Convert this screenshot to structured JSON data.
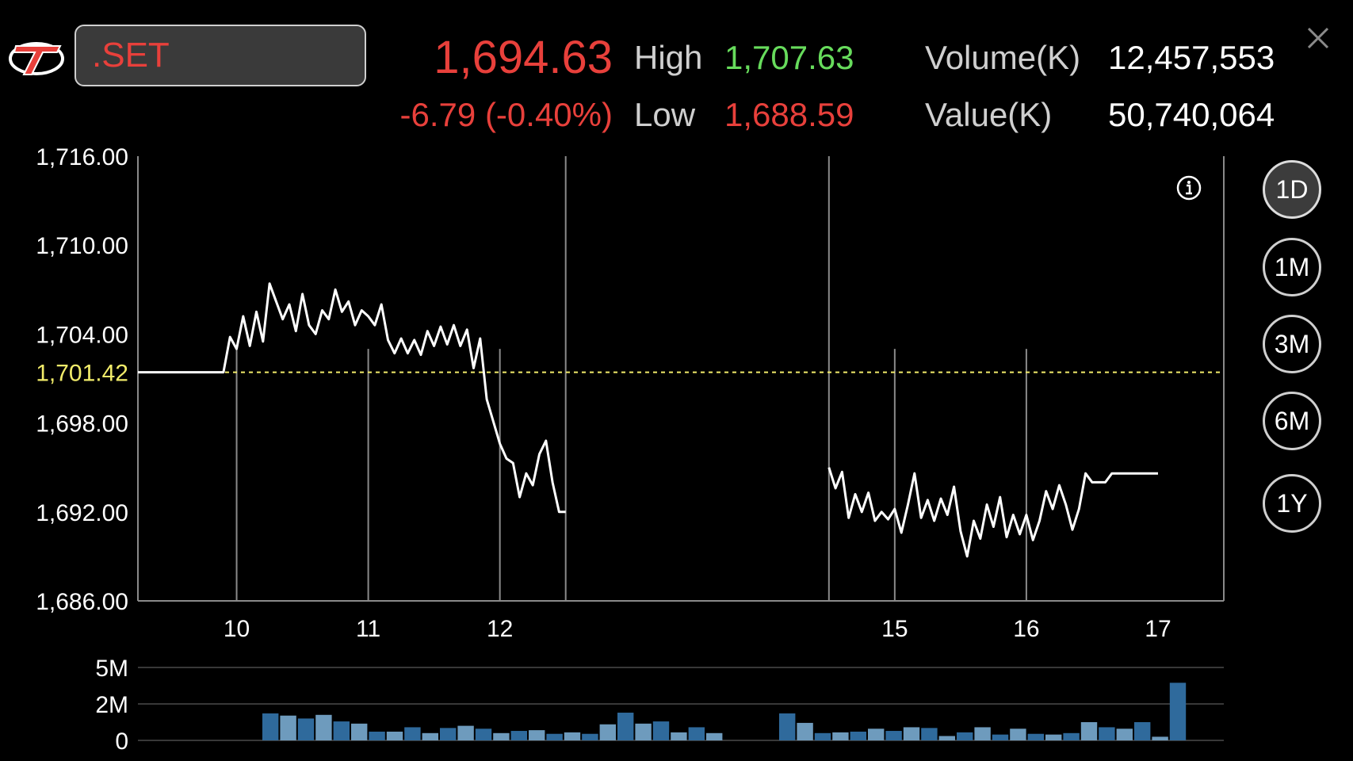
{
  "header": {
    "symbol": ".SET",
    "last": "1,694.63",
    "change": "-6.79 (-0.40%)",
    "high_label": "High",
    "high_value": "1,707.63",
    "low_label": "Low",
    "low_value": "1,688.59",
    "volume_label": "Volume(K)",
    "volume_value": "12,457,553",
    "value_label": "Value(K)",
    "value_value": "50,740,064"
  },
  "range_buttons": [
    {
      "label": "1D",
      "active": true
    },
    {
      "label": "1M",
      "active": false
    },
    {
      "label": "3M",
      "active": false
    },
    {
      "label": "6M",
      "active": false
    },
    {
      "label": "1Y",
      "active": false
    }
  ],
  "colors": {
    "down": "#e8403b",
    "up": "#67dc5c",
    "prev_close": "#f2ec6a",
    "line": "#ffffff",
    "volume_dark": "#2f6a9c",
    "volume_light": "#6e9bbd"
  },
  "icons": {
    "logo": "brand-logo",
    "close": "close-icon",
    "info": "info-icon"
  },
  "chart_data": {
    "type": "line",
    "ylim": [
      1686,
      1716
    ],
    "yticks": [
      "1,716.00",
      "1,710.00",
      "1,704.00",
      "1,698.00",
      "1,692.00",
      "1,686.00"
    ],
    "ytick_values": [
      1716,
      1710,
      1704,
      1698,
      1692,
      1686
    ],
    "prev_close": 1701.42,
    "prev_close_label": "1,701.42",
    "xlim": [
      9.25,
      17.5
    ],
    "xticks": [
      "10",
      "11",
      "12",
      "15",
      "16",
      "17"
    ],
    "xtick_values": [
      10,
      11,
      12,
      15,
      16,
      17
    ],
    "lunch_break": [
      12.5,
      14.5
    ],
    "series": [
      {
        "values": [
          [
            9.25,
            1701.42
          ],
          [
            9.9,
            1701.42
          ],
          [
            9.95,
            1703.8
          ],
          [
            10.0,
            1703.0
          ],
          [
            10.05,
            1705.2
          ],
          [
            10.1,
            1703.2
          ],
          [
            10.15,
            1705.5
          ],
          [
            10.2,
            1703.5
          ],
          [
            10.25,
            1707.4
          ],
          [
            10.3,
            1706.2
          ],
          [
            10.35,
            1705.0
          ],
          [
            10.4,
            1706.0
          ],
          [
            10.45,
            1704.2
          ],
          [
            10.5,
            1706.7
          ],
          [
            10.55,
            1704.6
          ],
          [
            10.6,
            1704.0
          ],
          [
            10.65,
            1705.6
          ],
          [
            10.7,
            1705.0
          ],
          [
            10.75,
            1707.0
          ],
          [
            10.8,
            1705.5
          ],
          [
            10.85,
            1706.2
          ],
          [
            10.9,
            1704.6
          ],
          [
            10.95,
            1705.6
          ],
          [
            11.0,
            1705.2
          ],
          [
            11.05,
            1704.6
          ],
          [
            11.1,
            1706.0
          ],
          [
            11.15,
            1703.6
          ],
          [
            11.2,
            1702.7
          ],
          [
            11.25,
            1703.7
          ],
          [
            11.3,
            1702.7
          ],
          [
            11.35,
            1703.6
          ],
          [
            11.4,
            1702.6
          ],
          [
            11.45,
            1704.2
          ],
          [
            11.5,
            1703.2
          ],
          [
            11.55,
            1704.5
          ],
          [
            11.6,
            1703.3
          ],
          [
            11.65,
            1704.6
          ],
          [
            11.7,
            1703.2
          ],
          [
            11.75,
            1704.3
          ],
          [
            11.8,
            1701.7
          ],
          [
            11.85,
            1703.7
          ],
          [
            11.9,
            1699.6
          ],
          [
            12.0,
            1696.6
          ],
          [
            12.05,
            1695.6
          ],
          [
            12.1,
            1695.3
          ],
          [
            12.15,
            1693.0
          ],
          [
            12.2,
            1694.6
          ],
          [
            12.25,
            1693.8
          ],
          [
            12.3,
            1695.9
          ],
          [
            12.35,
            1696.8
          ],
          [
            12.4,
            1694.0
          ],
          [
            12.45,
            1692.0
          ],
          [
            12.5,
            1692.0
          ]
        ]
      },
      {
        "values": [
          [
            14.5,
            1695.0
          ],
          [
            14.55,
            1693.6
          ],
          [
            14.6,
            1694.7
          ],
          [
            14.65,
            1691.6
          ],
          [
            14.7,
            1693.2
          ],
          [
            14.75,
            1692.0
          ],
          [
            14.8,
            1693.3
          ],
          [
            14.85,
            1691.4
          ],
          [
            14.9,
            1692.0
          ],
          [
            14.95,
            1691.5
          ],
          [
            15.0,
            1692.2
          ],
          [
            15.05,
            1690.6
          ],
          [
            15.1,
            1692.5
          ],
          [
            15.15,
            1694.6
          ],
          [
            15.2,
            1691.6
          ],
          [
            15.25,
            1692.8
          ],
          [
            15.3,
            1691.4
          ],
          [
            15.35,
            1692.9
          ],
          [
            15.4,
            1691.8
          ],
          [
            15.45,
            1693.7
          ],
          [
            15.5,
            1690.7
          ],
          [
            15.55,
            1689.0
          ],
          [
            15.6,
            1691.4
          ],
          [
            15.65,
            1690.2
          ],
          [
            15.7,
            1692.5
          ],
          [
            15.75,
            1691.0
          ],
          [
            15.8,
            1693.0
          ],
          [
            15.85,
            1690.3
          ],
          [
            15.9,
            1691.8
          ],
          [
            15.95,
            1690.5
          ],
          [
            16.0,
            1691.8
          ],
          [
            16.05,
            1690.1
          ],
          [
            16.1,
            1691.4
          ],
          [
            16.15,
            1693.4
          ],
          [
            16.2,
            1692.2
          ],
          [
            16.25,
            1693.8
          ],
          [
            16.3,
            1692.5
          ],
          [
            16.35,
            1690.8
          ],
          [
            16.4,
            1692.2
          ],
          [
            16.45,
            1694.6
          ],
          [
            16.5,
            1694.0
          ],
          [
            16.6,
            1694.0
          ],
          [
            16.65,
            1694.6
          ],
          [
            17.0,
            1694.6
          ]
        ]
      }
    ],
    "volume": {
      "ylim": [
        0,
        5000000
      ],
      "yticks": [
        "5M",
        "2M",
        "0"
      ],
      "ytick_values": [
        5000000,
        2500000,
        0
      ],
      "bars_morning": [
        1.85,
        1.7,
        1.5,
        1.75,
        1.3,
        1.15,
        0.6,
        0.6,
        0.9,
        0.5,
        0.85,
        1.0,
        0.8,
        0.5,
        0.65,
        0.7,
        0.45,
        0.55,
        0.45,
        1.1,
        1.9,
        1.15,
        1.3,
        0.55,
        0.9,
        0.5
      ],
      "bars_afternoon": [
        1.85,
        1.2,
        0.5,
        0.55,
        0.6,
        0.8,
        0.65,
        0.9,
        0.85,
        0.3,
        0.55,
        0.9,
        0.4,
        0.8,
        0.45,
        0.4,
        0.5,
        1.25,
        0.9,
        0.8,
        1.25,
        0.25,
        3.95
      ]
    }
  }
}
